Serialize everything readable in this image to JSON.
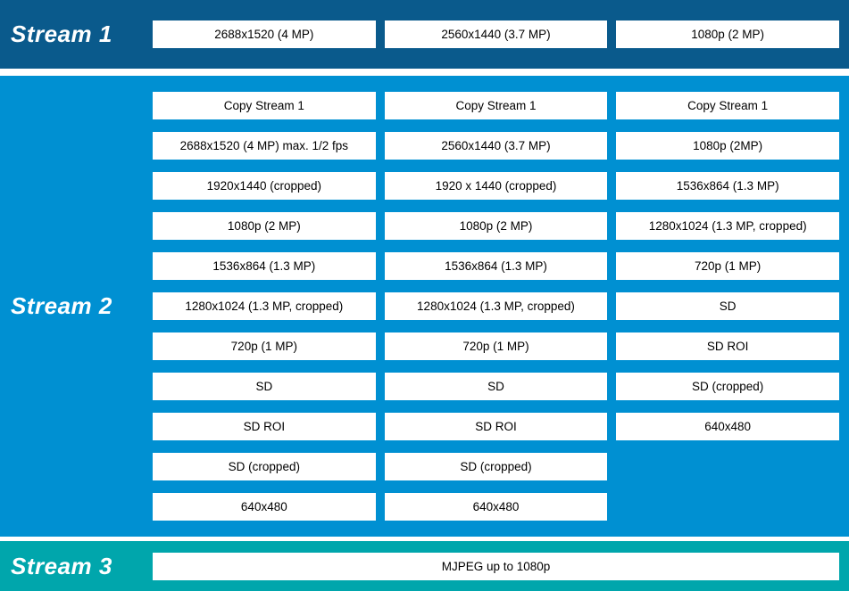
{
  "colors": {
    "stream1_bg": "#0a5a8c",
    "stream2_bg": "#0090d2",
    "stream3_bg": "#00a6ac",
    "box_bg": "#ffffff",
    "box_text": "#000000",
    "label_text": "#ffffff",
    "page_bg": "#ffffff"
  },
  "stream1": {
    "label": "Stream 1",
    "boxes": [
      "2688x1520 (4 MP)",
      "2560x1440 (3.7 MP)",
      "1080p (2 MP)"
    ]
  },
  "stream2": {
    "label": "Stream 2",
    "columns": [
      {
        "boxes": [
          "Copy Stream 1",
          "2688x1520 (4 MP) max. 1/2 fps",
          "1920x1440 (cropped)",
          "1080p (2 MP)",
          "1536x864 (1.3 MP)",
          "1280x1024 (1.3 MP, cropped)",
          "720p (1 MP)",
          "SD",
          "SD ROI",
          "SD (cropped)",
          "640x480"
        ]
      },
      {
        "boxes": [
          "Copy Stream 1",
          "2560x1440 (3.7 MP)",
          "1920 x 1440 (cropped)",
          "1080p (2 MP)",
          "1536x864 (1.3 MP)",
          "1280x1024 (1.3 MP, cropped)",
          "720p (1 MP)",
          "SD",
          "SD ROI",
          "SD (cropped)",
          "640x480"
        ]
      },
      {
        "boxes": [
          "Copy Stream 1",
          "1080p (2MP)",
          "1536x864 (1.3 MP)",
          "1280x1024 (1.3 MP, cropped)",
          "720p (1 MP)",
          "SD",
          "SD ROI",
          "SD (cropped)",
          "640x480"
        ]
      }
    ]
  },
  "stream3": {
    "label": "Stream 3",
    "boxes": [
      "MJPEG up to 1080p"
    ]
  }
}
